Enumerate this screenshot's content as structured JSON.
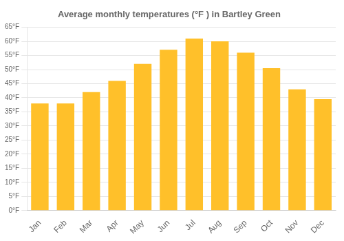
{
  "chart_data": {
    "type": "bar",
    "title": "Average monthly temperatures (°F ) in Bartley Green",
    "categories": [
      "Jan",
      "Feb",
      "Mar",
      "Apr",
      "May",
      "Jun",
      "Jul",
      "Aug",
      "Sep",
      "Oct",
      "Nov",
      "Dec"
    ],
    "values": [
      38,
      38,
      42,
      46,
      52,
      57,
      61,
      60,
      56,
      50.5,
      43,
      39.5
    ],
    "color": "#FFC02A",
    "ylim": [
      0,
      65
    ],
    "yticks": [
      {
        "value": 0,
        "label": "0°F"
      },
      {
        "value": 5,
        "label": "5°F"
      },
      {
        "value": 10,
        "label": "10°F"
      },
      {
        "value": 15,
        "label": "15°F"
      },
      {
        "value": 20,
        "label": "20°F"
      },
      {
        "value": 25,
        "label": "25°F"
      },
      {
        "value": 30,
        "label": "30°F"
      },
      {
        "value": 35,
        "label": "35°F"
      },
      {
        "value": 40,
        "label": "40°F"
      },
      {
        "value": 45,
        "label": "45°F"
      },
      {
        "value": 50,
        "label": "50°F"
      },
      {
        "value": 55,
        "label": "55°F"
      },
      {
        "value": 60,
        "label": "60°F"
      },
      {
        "value": 65,
        "label": "65°F"
      }
    ],
    "grid": true
  }
}
